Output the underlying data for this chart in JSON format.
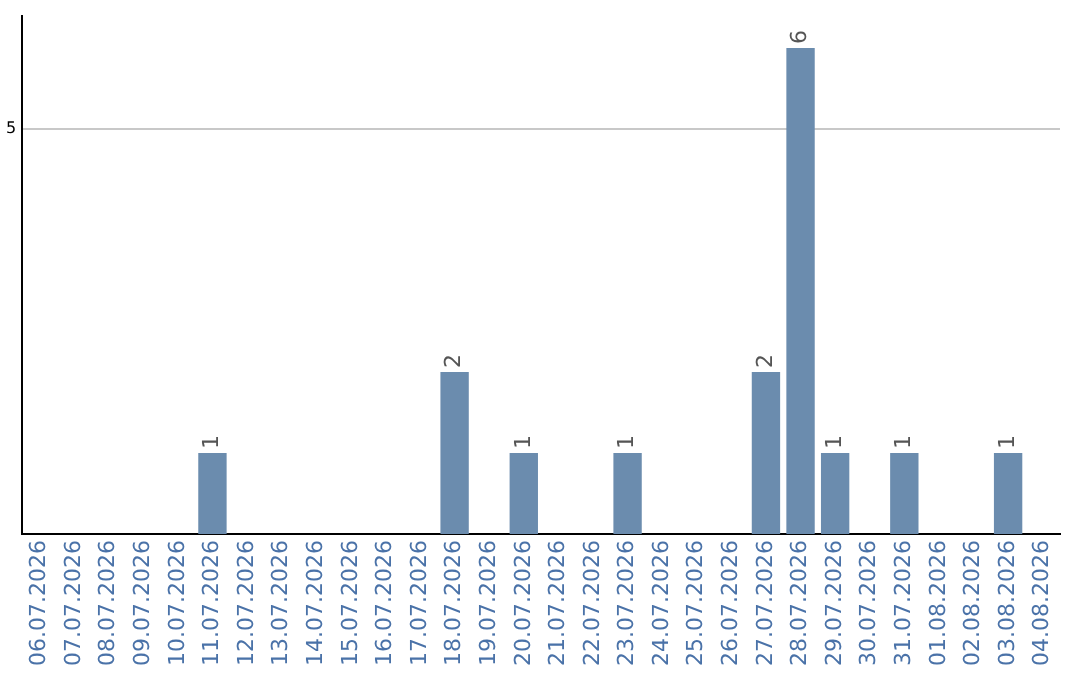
{
  "chart_data": {
    "type": "bar",
    "categories": [
      "06.07.2026",
      "07.07.2026",
      "08.07.2026",
      "09.07.2026",
      "10.07.2026",
      "11.07.2026",
      "12.07.2026",
      "13.07.2026",
      "14.07.2026",
      "15.07.2026",
      "16.07.2026",
      "17.07.2026",
      "18.07.2026",
      "19.07.2026",
      "20.07.2026",
      "21.07.2026",
      "22.07.2026",
      "23.07.2026",
      "24.07.2026",
      "25.07.2026",
      "26.07.2026",
      "27.07.2026",
      "28.07.2026",
      "29.07.2026",
      "30.07.2026",
      "31.07.2026",
      "01.08.2026",
      "02.08.2026",
      "03.08.2026",
      "04.08.2026"
    ],
    "values": [
      0,
      0,
      0,
      0,
      0,
      1,
      0,
      0,
      0,
      0,
      0,
      0,
      2,
      0,
      1,
      0,
      0,
      1,
      0,
      0,
      0,
      2,
      6,
      1,
      0,
      1,
      0,
      0,
      1,
      0
    ],
    "value_labels": [
      null,
      null,
      null,
      null,
      null,
      "1",
      null,
      null,
      null,
      null,
      null,
      null,
      "2",
      null,
      "1",
      null,
      null,
      "1",
      null,
      null,
      null,
      "2",
      "6",
      "1",
      null,
      "1",
      null,
      null,
      "1",
      null
    ],
    "color": "#6b8cae",
    "ylim": [
      0,
      6.4
    ],
    "yticks": [
      5
    ],
    "grid": "y",
    "legend": false
  }
}
